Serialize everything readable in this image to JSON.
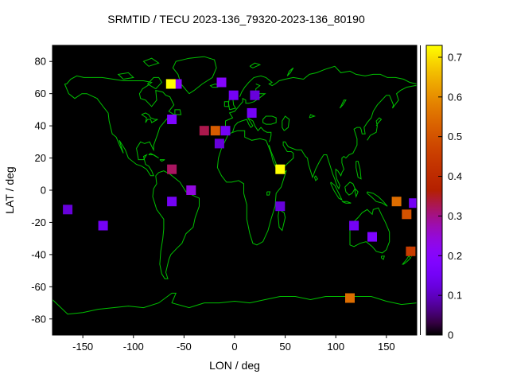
{
  "chart_data": {
    "type": "scatter",
    "title": "SRMTID / TECU 2023-136_79320-2023-136_80190",
    "xlabel": "LON / deg",
    "ylabel": "LAT / deg",
    "xlim": [
      -180,
      180
    ],
    "ylim": [
      -90,
      90
    ],
    "x_ticks": [
      -150,
      -100,
      -50,
      0,
      50,
      100,
      150
    ],
    "y_ticks": [
      -80,
      -60,
      -40,
      -20,
      0,
      20,
      40,
      60,
      80
    ],
    "grid": false,
    "marker": "filled-square",
    "background_color": "#000000",
    "coastline_color": "#00c000",
    "colorbar": {
      "position": "right",
      "min": 0,
      "max": 0.73,
      "ticks": [
        0,
        0.1,
        0.2,
        0.3,
        0.4,
        0.5,
        0.6,
        0.7
      ],
      "palette": "black-purple-magenta-orange-yellow (gnuplot rgbformulae 7,5,15)"
    },
    "points": [
      {
        "lon": -57,
        "lat": 66,
        "tecu": 0.2
      },
      {
        "lon": -63,
        "lat": 66,
        "tecu": 0.73
      },
      {
        "lon": -13,
        "lat": 67,
        "tecu": 0.2
      },
      {
        "lon": -1,
        "lat": 59,
        "tecu": 0.15
      },
      {
        "lon": 20,
        "lat": 59,
        "tecu": 0.12
      },
      {
        "lon": 17,
        "lat": 48,
        "tecu": 0.15
      },
      {
        "lon": -62,
        "lat": 44,
        "tecu": 0.18
      },
      {
        "lon": -30,
        "lat": 37,
        "tecu": 0.33
      },
      {
        "lon": -19,
        "lat": 37,
        "tecu": 0.52
      },
      {
        "lon": -9,
        "lat": 37,
        "tecu": 0.15
      },
      {
        "lon": -15,
        "lat": 29,
        "tecu": 0.12
      },
      {
        "lon": -62,
        "lat": 13,
        "tecu": 0.32
      },
      {
        "lon": 45,
        "lat": 13,
        "tecu": 0.73
      },
      {
        "lon": -43,
        "lat": 0,
        "tecu": 0.24
      },
      {
        "lon": -62,
        "lat": -7,
        "tecu": 0.15
      },
      {
        "lon": -165,
        "lat": -12,
        "tecu": 0.12
      },
      {
        "lon": -130,
        "lat": -22,
        "tecu": 0.15
      },
      {
        "lon": 45,
        "lat": -10,
        "tecu": 0.12
      },
      {
        "lon": 160,
        "lat": -7,
        "tecu": 0.55
      },
      {
        "lon": 177,
        "lat": -8,
        "tecu": 0.15
      },
      {
        "lon": 170,
        "lat": -15,
        "tecu": 0.5
      },
      {
        "lon": 118,
        "lat": -22,
        "tecu": 0.15
      },
      {
        "lon": 136,
        "lat": -29,
        "tecu": 0.18
      },
      {
        "lon": 174,
        "lat": -38,
        "tecu": 0.45
      },
      {
        "lon": 114,
        "lat": -67,
        "tecu": 0.55
      }
    ]
  }
}
